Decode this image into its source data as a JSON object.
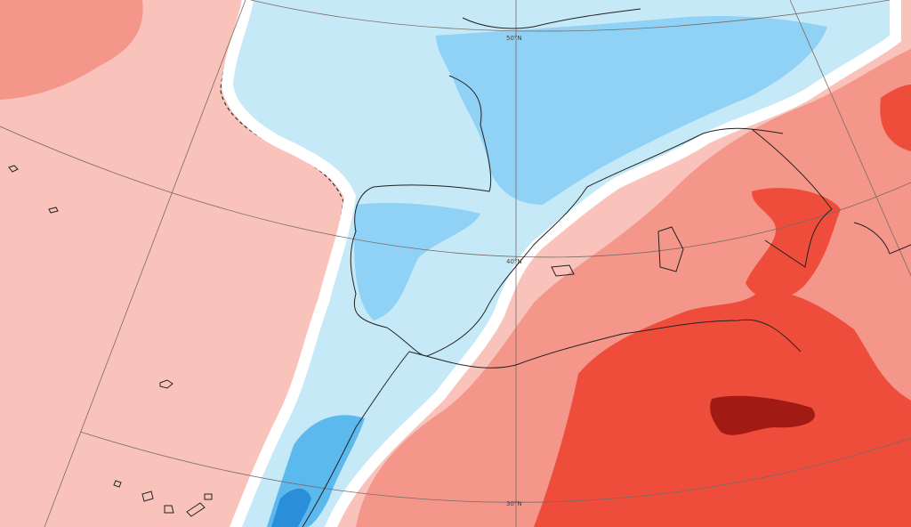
{
  "latitude_labels": [
    "50°N",
    "40°N",
    "30°N"
  ]
}
